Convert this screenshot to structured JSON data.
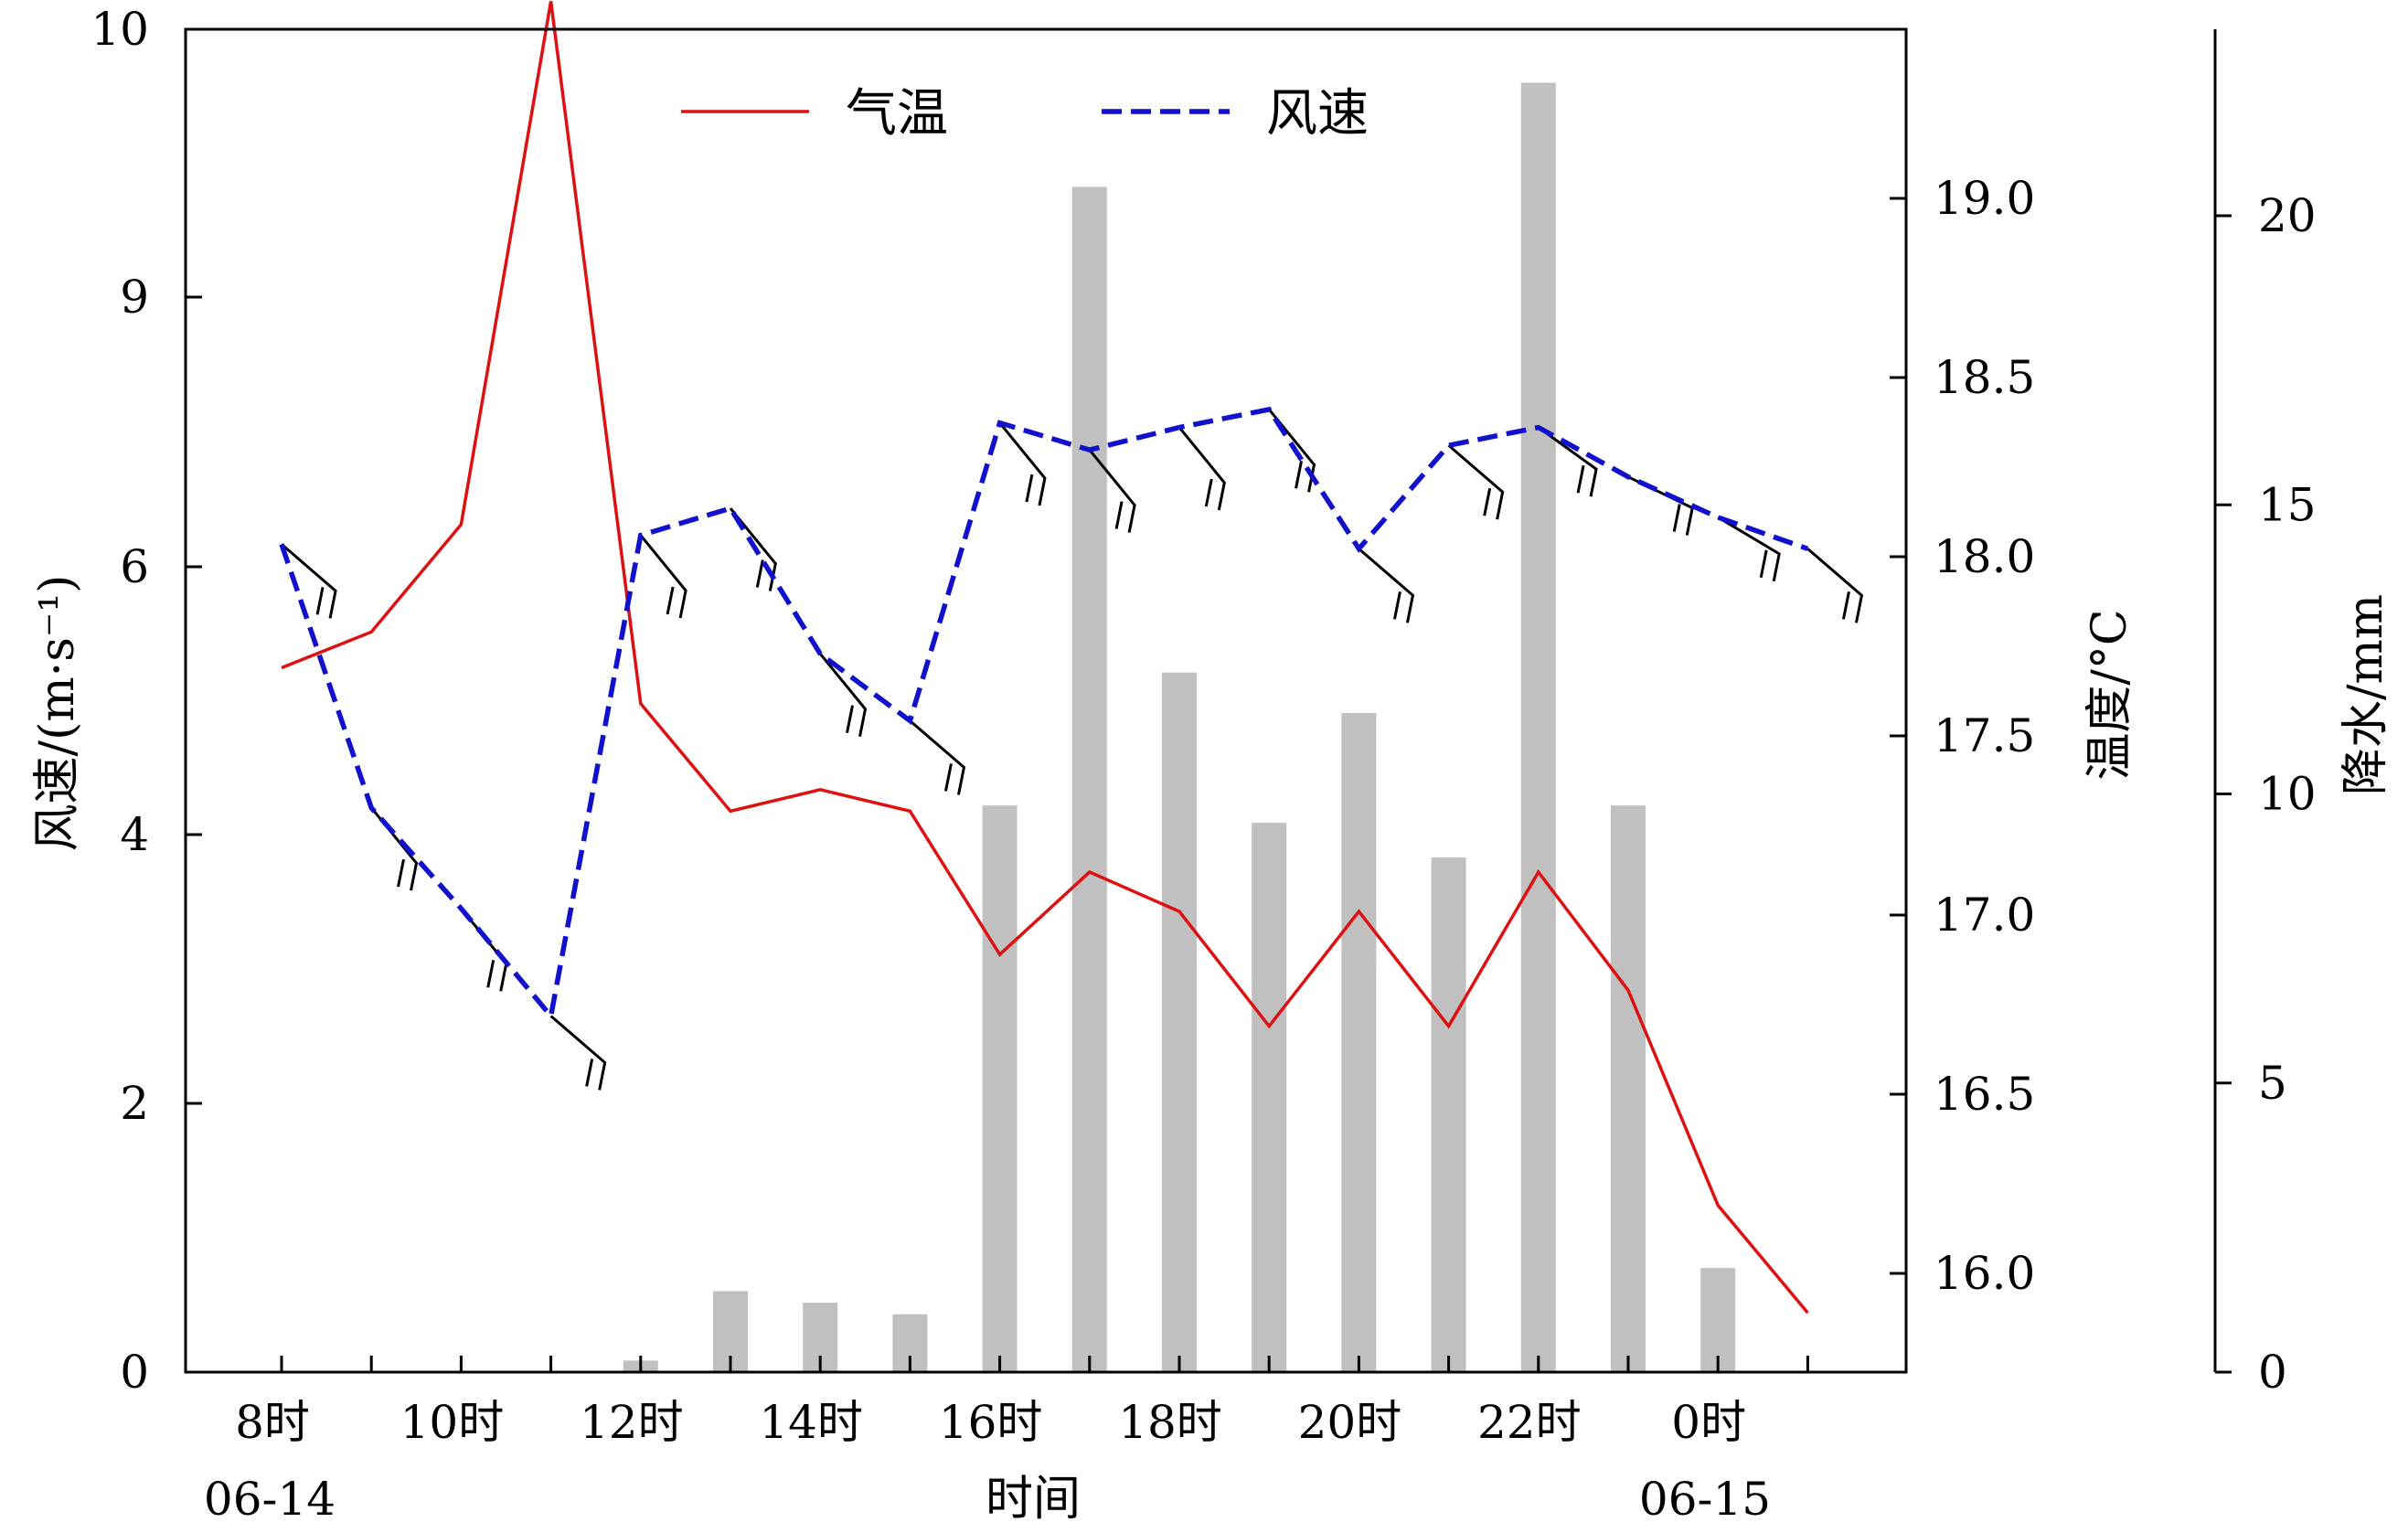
{
  "chart_data": {
    "type": "bar+line",
    "x": {
      "tick_labels": [
        "8时",
        "10时",
        "12时",
        "14时",
        "16时",
        "18时",
        "20时",
        "22时",
        "0时"
      ],
      "date_labels": [
        "06-14",
        "06-15"
      ],
      "label": "时间",
      "hours": [
        "8",
        "9",
        "10",
        "11",
        "12",
        "13",
        "14",
        "15",
        "16",
        "17",
        "18",
        "19",
        "20",
        "21",
        "22",
        "23",
        "0",
        "1"
      ]
    },
    "y_left": {
      "label": "风速/(m·s⁻¹)",
      "display_ticks": [
        "0",
        "2",
        "4",
        "6",
        "9",
        "10"
      ]
    },
    "y_temp": {
      "label": "温度/°C",
      "range": [
        15.75,
        19.47
      ],
      "ticks": [
        "16.0",
        "16.5",
        "17.0",
        "17.5",
        "18.0",
        "18.5",
        "19.0"
      ]
    },
    "y_precip": {
      "label": "降水/mm",
      "range": [
        0,
        23
      ],
      "ticks": [
        "0",
        "5",
        "10",
        "15",
        "20"
      ]
    },
    "legend": {
      "position": "top-center",
      "items": [
        "气温",
        "风速"
      ]
    },
    "series": [
      {
        "name": "气温",
        "color": "#dd1111",
        "style": "solid",
        "values": [
          17.69,
          17.79,
          18.09,
          19.55,
          17.59,
          17.29,
          17.35,
          17.29,
          16.89,
          17.12,
          17.01,
          16.69,
          17.01,
          16.69,
          17.12,
          16.79,
          16.19,
          15.89
        ]
      },
      {
        "name": "风速",
        "color": "#1111cc",
        "style": "dashed",
        "values": [
          6.25,
          4.2,
          3.45,
          2.65,
          6.35,
          6.65,
          5.35,
          4.85,
          7.6,
          7.3,
          7.55,
          7.75,
          6.2,
          7.35,
          7.55,
          7.0,
          6.55,
          6.2
        ]
      },
      {
        "name": "降水",
        "color": "#c0c0c0",
        "type": "bar",
        "values": [
          0,
          0,
          0,
          0,
          0.2,
          1.4,
          1.2,
          1.0,
          9.8,
          20.5,
          12.1,
          9.5,
          11.4,
          8.9,
          22.3,
          9.8,
          1.8,
          0
        ]
      }
    ],
    "wind_barbs": {
      "note": "wind direction barbs drawn at each wind-speed point",
      "directions_deg": [
        300,
        320,
        320,
        300,
        320,
        320,
        320,
        300,
        320,
        320,
        320,
        320,
        300,
        300,
        290,
        270,
        280,
        300
      ]
    }
  }
}
